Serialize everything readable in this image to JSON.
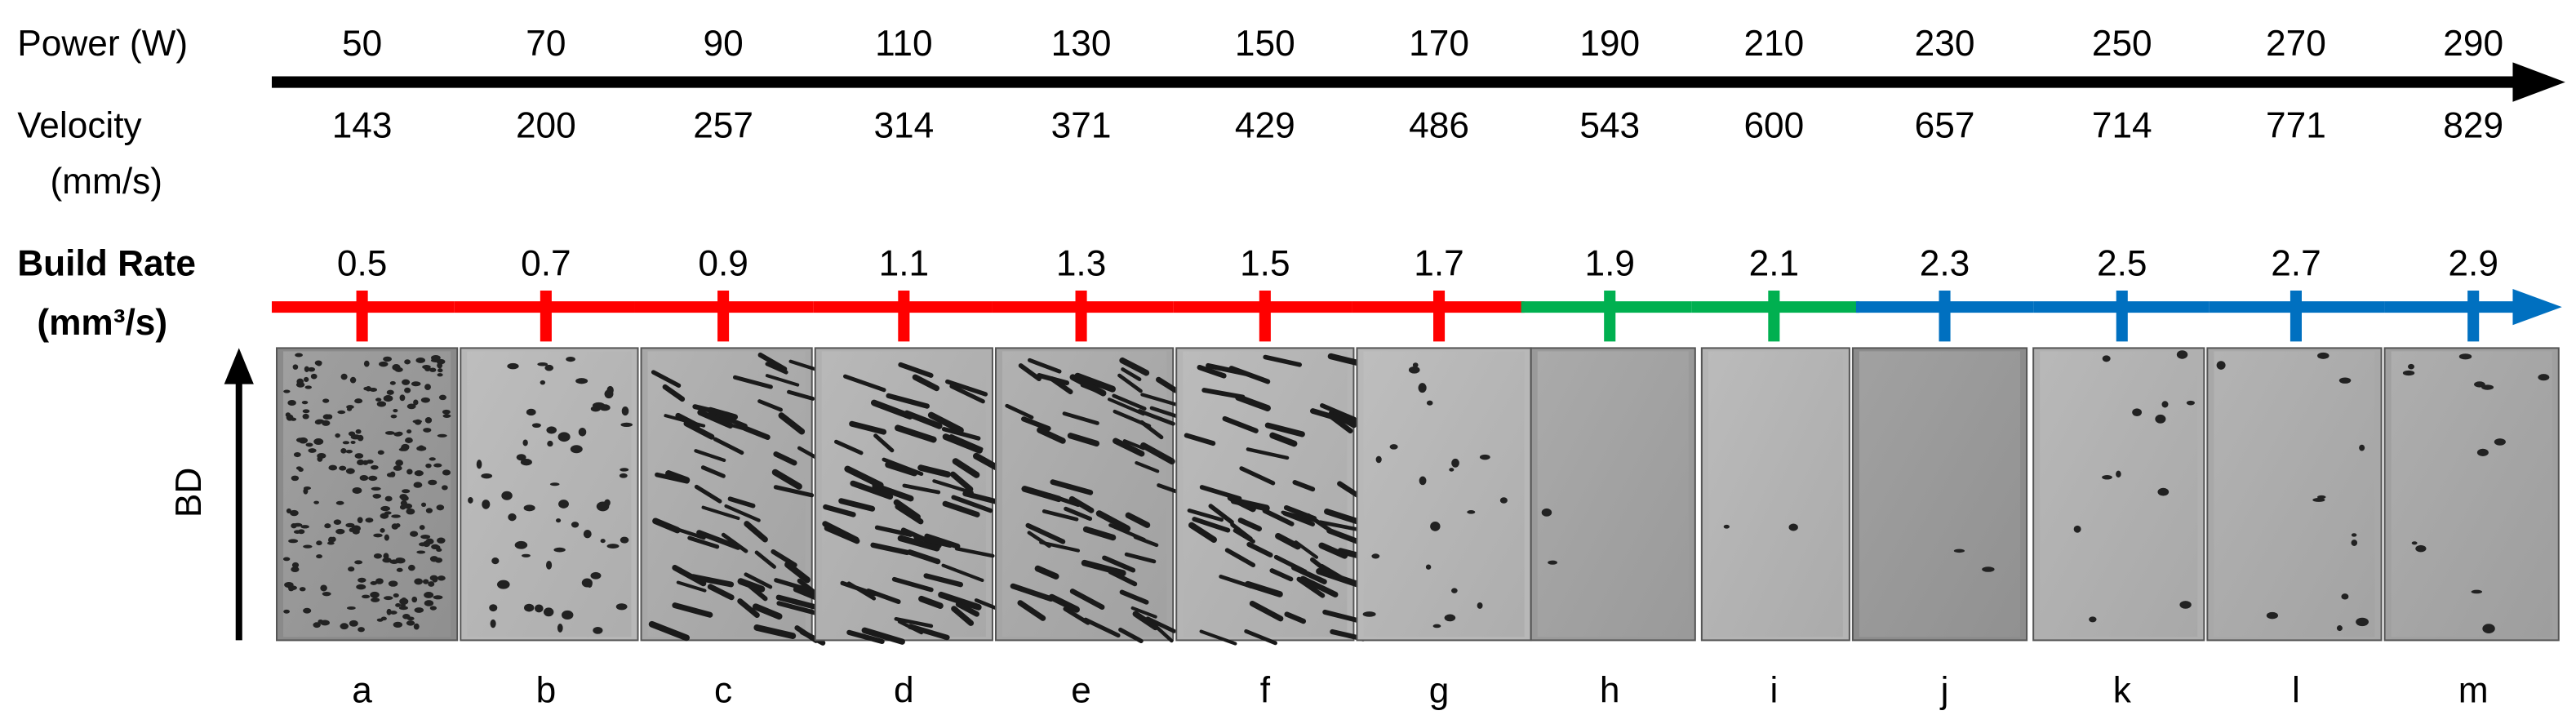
{
  "power": {
    "label": "Power (W)",
    "values": [
      50,
      70,
      90,
      110,
      130,
      150,
      170,
      190,
      210,
      230,
      250,
      270,
      290
    ]
  },
  "velocity": {
    "label": "Velocity",
    "unit": "(mm/s)",
    "values": [
      143,
      200,
      257,
      314,
      371,
      429,
      486,
      543,
      600,
      657,
      714,
      771,
      829
    ]
  },
  "build_rate": {
    "label": "Build Rate",
    "unit": "(mm³/s)",
    "values": [
      0.5,
      0.7,
      0.9,
      1.1,
      1.3,
      1.5,
      1.7,
      1.9,
      2.1,
      2.3,
      2.5,
      2.7,
      2.9
    ],
    "colors": [
      "#ff0000",
      "#ff0000",
      "#ff0000",
      "#ff0000",
      "#ff0000",
      "#ff0000",
      "#ff0000",
      "#00b050",
      "#00b050",
      "#0070c0",
      "#0070c0",
      "#0070c0",
      "#0070c0"
    ]
  },
  "bd": "BD",
  "samples": [
    "a",
    "b",
    "c",
    "d",
    "e",
    "f",
    "g",
    "h",
    "i",
    "j",
    "k",
    "l",
    "m"
  ]
}
